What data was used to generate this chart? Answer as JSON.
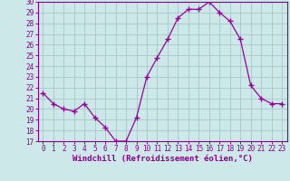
{
  "x": [
    0,
    1,
    2,
    3,
    4,
    5,
    6,
    7,
    8,
    9,
    10,
    11,
    12,
    13,
    14,
    15,
    16,
    17,
    18,
    19,
    20,
    21,
    22,
    23
  ],
  "y": [
    21.5,
    20.5,
    20.0,
    19.8,
    20.5,
    19.2,
    18.3,
    17.0,
    17.0,
    19.2,
    23.0,
    24.8,
    26.5,
    28.5,
    29.3,
    29.3,
    30.0,
    29.0,
    28.2,
    26.5,
    22.2,
    21.0,
    20.5,
    20.5
  ],
  "line_color": "#990099",
  "marker": "+",
  "marker_size": 4,
  "bg_color": "#cce8e8",
  "grid_color": "#aacccc",
  "xlabel": "Windchill (Refroidissement éolien,°C)",
  "ylim": [
    17,
    30
  ],
  "xlim": [
    -0.5,
    23.5
  ],
  "yticks": [
    17,
    18,
    19,
    20,
    21,
    22,
    23,
    24,
    25,
    26,
    27,
    28,
    29,
    30
  ],
  "xticks": [
    0,
    1,
    2,
    3,
    4,
    5,
    6,
    7,
    8,
    9,
    10,
    11,
    12,
    13,
    14,
    15,
    16,
    17,
    18,
    19,
    20,
    21,
    22,
    23
  ],
  "tick_color": "#880088",
  "label_color": "#880088",
  "axis_color": "#880088",
  "tick_fontsize": 5.5,
  "xlabel_fontsize": 6.5
}
